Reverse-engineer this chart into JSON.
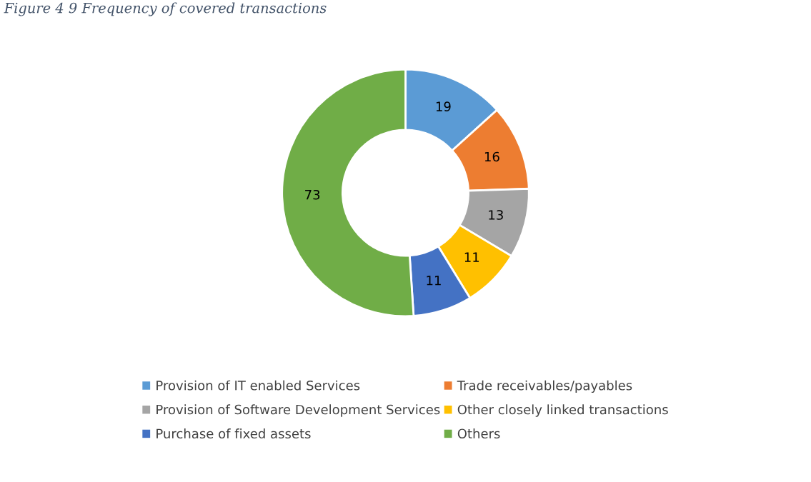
{
  "chart_data": {
    "type": "donut",
    "title": "Figure 4 9 Frequency of covered transactions",
    "categories": [
      "Provision of IT enabled Services",
      "Trade receivables/payables",
      "Provision of Software Development Services",
      "Other closely linked transactions",
      "Purchase of fixed assets",
      "Others"
    ],
    "values": [
      19,
      16,
      13,
      11,
      11,
      73
    ],
    "colors": [
      "#5b9bd5",
      "#ed7d31",
      "#a5a5a5",
      "#ffc000",
      "#4472c4",
      "#70ad47"
    ],
    "data_labels": true,
    "legend": "bottom"
  }
}
